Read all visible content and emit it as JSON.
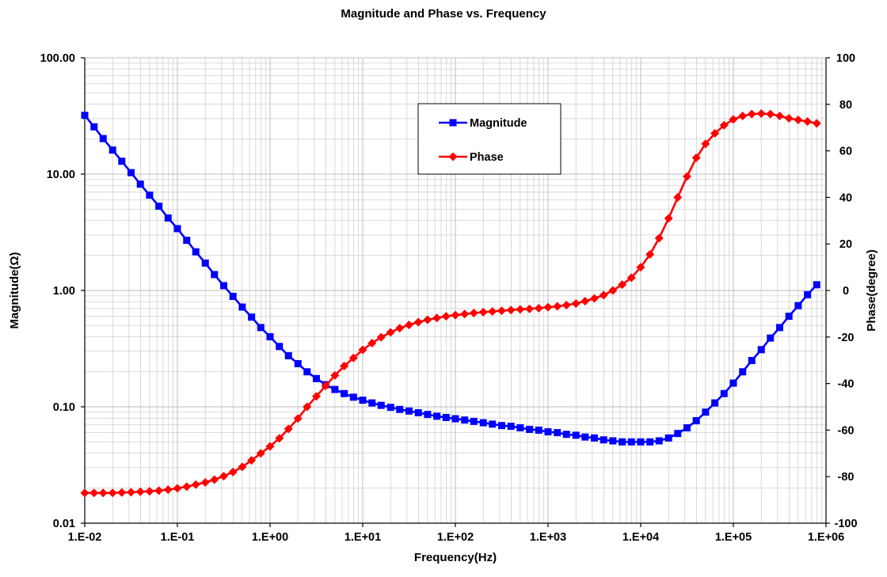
{
  "chart_data": {
    "type": "line",
    "title": "Magnitude and Phase vs. Frequency",
    "xlabel": "Frequency(Hz)",
    "ylabel_left": "Magnitude(Ω)",
    "ylabel_right": "Phase(degree)",
    "x_scale": "log",
    "y_left_scale": "log",
    "x_range": [
      0.01,
      1000000
    ],
    "y_left_range": [
      0.01,
      100
    ],
    "y_right_range": [
      -100,
      100
    ],
    "x_ticks": [
      "1.E-02",
      "1.E-01",
      "1.E+00",
      "1.E+01",
      "1.E+02",
      "1.E+03",
      "1.E+04",
      "1.E+05",
      "1.E+06"
    ],
    "y_left_ticks": [
      "100.00",
      "10.00",
      "1.00",
      "0.10",
      "0.01"
    ],
    "y_right_ticks": [
      "100",
      "80",
      "60",
      "40",
      "20",
      "0",
      "-20",
      "-40",
      "-60",
      "-80",
      "-100"
    ],
    "grid": true,
    "legend_position": "top-center",
    "series": [
      {
        "name": "Magnitude",
        "axis": "left",
        "color": "#0000ff",
        "marker": "square",
        "x": [
          0.01,
          0.0126,
          0.0158,
          0.02,
          0.0251,
          0.0316,
          0.0398,
          0.0501,
          0.0631,
          0.0794,
          0.1,
          0.126,
          0.158,
          0.2,
          0.251,
          0.316,
          0.398,
          0.501,
          0.631,
          0.794,
          1,
          1.26,
          1.58,
          2,
          2.51,
          3.16,
          3.98,
          5.01,
          6.31,
          7.94,
          10,
          12.6,
          15.8,
          20,
          25.1,
          31.6,
          39.8,
          50.1,
          63.1,
          79.4,
          100,
          126,
          158,
          200,
          251,
          316,
          398,
          501,
          631,
          794,
          1000,
          1260,
          1580,
          2000,
          2510,
          3160,
          3980,
          5010,
          6310,
          7940,
          10000,
          12600,
          15800,
          20000,
          25100,
          31600,
          39800,
          50100,
          63100,
          79400,
          100000,
          126000,
          158000,
          200000,
          251000,
          316000,
          398000,
          501000,
          631000,
          794000
        ],
        "y": [
          32,
          25.5,
          20.2,
          16.1,
          12.9,
          10.3,
          8.2,
          6.6,
          5.3,
          4.2,
          3.4,
          2.7,
          2.15,
          1.72,
          1.37,
          1.1,
          0.89,
          0.72,
          0.59,
          0.48,
          0.4,
          0.33,
          0.275,
          0.235,
          0.2,
          0.175,
          0.155,
          0.141,
          0.13,
          0.121,
          0.114,
          0.108,
          0.103,
          0.099,
          0.095,
          0.092,
          0.089,
          0.086,
          0.083,
          0.081,
          0.079,
          0.077,
          0.075,
          0.073,
          0.071,
          0.069,
          0.068,
          0.066,
          0.064,
          0.063,
          0.061,
          0.06,
          0.058,
          0.057,
          0.055,
          0.054,
          0.052,
          0.051,
          0.05,
          0.05,
          0.05,
          0.05,
          0.051,
          0.054,
          0.059,
          0.066,
          0.076,
          0.09,
          0.108,
          0.13,
          0.16,
          0.2,
          0.25,
          0.31,
          0.39,
          0.48,
          0.6,
          0.74,
          0.92,
          1.12
        ]
      },
      {
        "name": "Phase",
        "axis": "right",
        "color": "#ff0000",
        "marker": "diamond",
        "x": [
          0.01,
          0.0126,
          0.0158,
          0.02,
          0.0251,
          0.0316,
          0.0398,
          0.0501,
          0.0631,
          0.0794,
          0.1,
          0.126,
          0.158,
          0.2,
          0.251,
          0.316,
          0.398,
          0.501,
          0.631,
          0.794,
          1,
          1.26,
          1.58,
          2,
          2.51,
          3.16,
          3.98,
          5.01,
          6.31,
          7.94,
          10,
          12.6,
          15.8,
          20,
          25.1,
          31.6,
          39.8,
          50.1,
          63.1,
          79.4,
          100,
          126,
          158,
          200,
          251,
          316,
          398,
          501,
          631,
          794,
          1000,
          1260,
          1580,
          2000,
          2510,
          3160,
          3980,
          5010,
          6310,
          7940,
          10000,
          12600,
          15800,
          20000,
          25100,
          31600,
          39800,
          50100,
          63100,
          79400,
          100000,
          126000,
          158000,
          200000,
          251000,
          316000,
          398000,
          501000,
          631000,
          794000
        ],
        "y": [
          -87,
          -87,
          -87,
          -87,
          -86.8,
          -86.7,
          -86.5,
          -86.3,
          -86,
          -85.6,
          -85,
          -84.3,
          -83.4,
          -82.5,
          -81.3,
          -79.8,
          -78,
          -75.8,
          -73,
          -70,
          -67,
          -63.5,
          -59.5,
          -55,
          -50,
          -45.5,
          -41,
          -36.5,
          -32.5,
          -29,
          -25.5,
          -22.6,
          -20.1,
          -18,
          -16.2,
          -14.8,
          -13.6,
          -12.6,
          -11.8,
          -11.1,
          -10.6,
          -10.1,
          -9.7,
          -9.3,
          -9,
          -8.7,
          -8.4,
          -8.1,
          -7.9,
          -7.6,
          -7.2,
          -6.8,
          -6.3,
          -5.6,
          -4.6,
          -3.4,
          -2,
          0,
          2.5,
          5.5,
          10,
          15.5,
          22.5,
          31,
          40,
          49,
          57,
          63,
          67.5,
          71,
          73.5,
          75,
          75.8,
          76,
          75.8,
          75,
          74,
          73.3,
          72.6,
          71.8
        ]
      }
    ]
  }
}
